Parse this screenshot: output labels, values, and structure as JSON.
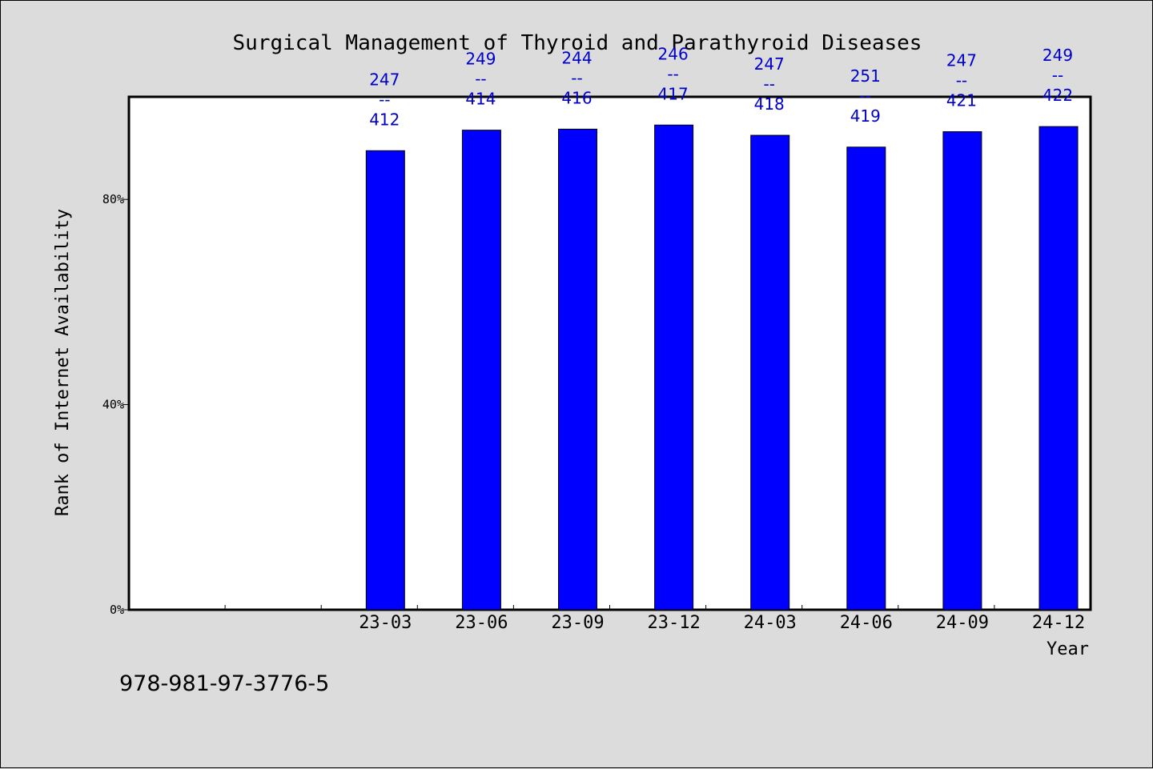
{
  "chart_data": {
    "type": "bar",
    "title": "Surgical Management of Thyroid and Parathyroid Diseases",
    "xlabel": "Year",
    "ylabel": "Rank of Internet Availability",
    "yticks": [
      "0%",
      "40%",
      "80%"
    ],
    "ylim": [
      0,
      100
    ],
    "bar_color": "#0000ff",
    "label_color": "#0000cc",
    "categories": [
      "",
      "",
      "23-03",
      "23-06",
      "23-09",
      "23-12",
      "24-03",
      "24-06",
      "24-09",
      "24-12"
    ],
    "values": [
      null,
      null,
      89.5,
      93.5,
      93.7,
      94.5,
      92.5,
      90.2,
      93.2,
      94.2
    ],
    "data_labels": [
      null,
      null,
      [
        "247",
        "--",
        "412"
      ],
      [
        "249",
        "--",
        "414"
      ],
      [
        "244",
        "--",
        "416"
      ],
      [
        "246",
        "--",
        "417"
      ],
      [
        "247",
        "--",
        "418"
      ],
      [
        "251",
        "--",
        "419"
      ],
      [
        "247",
        "--",
        "421"
      ],
      [
        "249",
        "--",
        "422"
      ]
    ],
    "grid": false,
    "legend": "none"
  },
  "footer": {
    "isbn": "978-981-97-3776-5"
  }
}
